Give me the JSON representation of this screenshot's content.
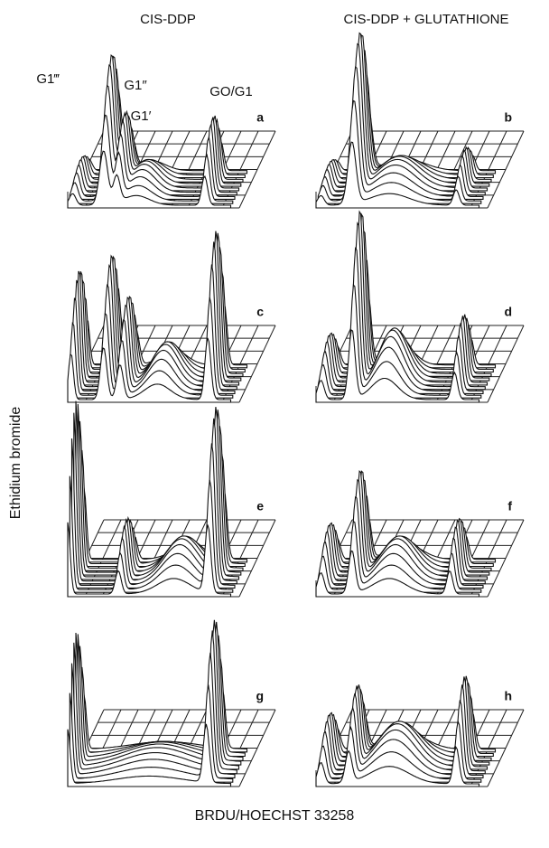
{
  "header": {
    "left_title": "CIS-DDP",
    "right_title": "CIS-DDP + GLUTATHIONE"
  },
  "peak_labels": [
    "G1‴",
    "G1″",
    "G1′",
    "GO/G1"
  ],
  "panels": [
    "a",
    "b",
    "c",
    "d",
    "e",
    "f",
    "g",
    "h"
  ],
  "y_axis_label": "Ethidium bromide",
  "x_axis_label": "BRDU/HOECHST 33258"
}
